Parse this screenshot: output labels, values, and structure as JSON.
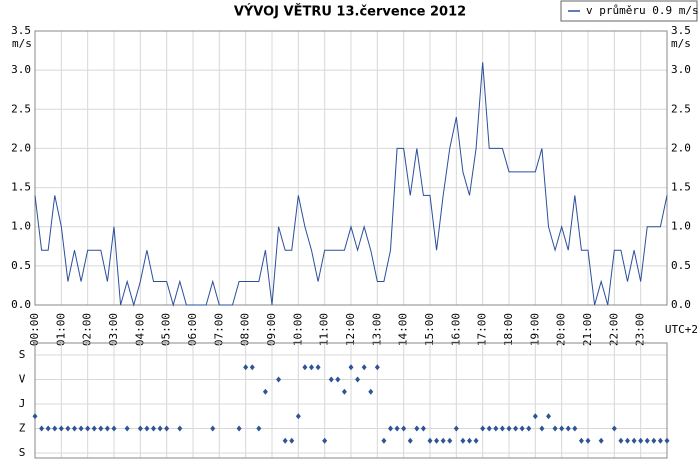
{
  "chart_data": [
    {
      "type": "line",
      "title": "VÝVOJ VĚTRU  13.července 2012",
      "y_unit": "m/s",
      "x_label": "UTC+2",
      "xlim": [
        0,
        24
      ],
      "xticks": [
        {
          "value": 0,
          "label": "00:00"
        },
        {
          "value": 1,
          "label": "01:00"
        },
        {
          "value": 2,
          "label": "02:00"
        },
        {
          "value": 3,
          "label": "03:00"
        },
        {
          "value": 4,
          "label": "04:00"
        },
        {
          "value": 5,
          "label": "05:00"
        },
        {
          "value": 6,
          "label": "06:00"
        },
        {
          "value": 7,
          "label": "07:00"
        },
        {
          "value": 8,
          "label": "08:00"
        },
        {
          "value": 9,
          "label": "09:00"
        },
        {
          "value": 10,
          "label": "10:00"
        },
        {
          "value": 11,
          "label": "11:00"
        },
        {
          "value": 12,
          "label": "12:00"
        },
        {
          "value": 13,
          "label": "13:00"
        },
        {
          "value": 14,
          "label": "14:00"
        },
        {
          "value": 15,
          "label": "15:00"
        },
        {
          "value": 16,
          "label": "16:00"
        },
        {
          "value": 17,
          "label": "17:00"
        },
        {
          "value": 18,
          "label": "18:00"
        },
        {
          "value": 19,
          "label": "19:00"
        },
        {
          "value": 20,
          "label": "20:00"
        },
        {
          "value": 21,
          "label": "21:00"
        },
        {
          "value": 22,
          "label": "22:00"
        },
        {
          "value": 23,
          "label": "23:00"
        }
      ],
      "ylim": [
        0,
        3.5
      ],
      "yticks": [
        {
          "value": 0,
          "label": "0.0"
        },
        {
          "value": 0.5,
          "label": "0.5"
        },
        {
          "value": 1,
          "label": "1.0"
        },
        {
          "value": 1.5,
          "label": "1.5"
        },
        {
          "value": 2,
          "label": "2.0"
        },
        {
          "value": 2.5,
          "label": "2.5"
        },
        {
          "value": 3,
          "label": "3.0"
        },
        {
          "value": 3.5,
          "label": "3.5"
        }
      ],
      "grid": true,
      "legend": "top-right",
      "x": [
        0,
        0.25,
        0.5,
        0.75,
        1,
        1.25,
        1.5,
        1.75,
        2,
        2.25,
        2.5,
        2.75,
        3,
        3.25,
        3.5,
        3.75,
        4,
        4.25,
        4.5,
        4.75,
        5,
        5.25,
        5.5,
        5.75,
        6,
        6.25,
        6.5,
        6.75,
        7,
        7.25,
        7.5,
        7.75,
        8,
        8.25,
        8.5,
        8.75,
        9,
        9.25,
        9.5,
        9.75,
        10,
        10.25,
        10.5,
        10.75,
        11,
        11.25,
        11.5,
        11.75,
        12,
        12.25,
        12.5,
        12.75,
        13,
        13.25,
        13.5,
        13.75,
        14,
        14.25,
        14.5,
        14.75,
        15,
        15.25,
        15.5,
        15.75,
        16,
        16.25,
        16.5,
        16.75,
        17,
        17.25,
        17.5,
        17.75,
        18,
        18.25,
        18.5,
        18.75,
        19,
        19.25,
        19.5,
        19.75,
        20,
        20.25,
        20.5,
        20.75,
        21,
        21.25,
        21.5,
        21.75,
        22,
        22.25,
        22.5,
        22.75,
        23,
        23.25,
        23.5,
        23.75,
        24
      ],
      "series": [
        {
          "name": "v průměru 0.9 m/s",
          "color": "#2b4f9c",
          "values": [
            1.4,
            0.7,
            0.7,
            1.4,
            1.0,
            0.3,
            0.7,
            0.3,
            0.7,
            0.7,
            0.7,
            0.3,
            1.0,
            0,
            0.3,
            0,
            0.3,
            0.7,
            0.3,
            0.3,
            0.3,
            0,
            0.3,
            0,
            0,
            0,
            0,
            0.3,
            0,
            0,
            0,
            0.3,
            0.3,
            0.3,
            0.3,
            0.7,
            0,
            1.0,
            0.7,
            0.7,
            1.4,
            1.0,
            0.7,
            0.3,
            0.7,
            0.7,
            0.7,
            0.7,
            1.0,
            0.7,
            1.0,
            0.7,
            0.3,
            0.3,
            0.7,
            2.0,
            2.0,
            1.4,
            2.0,
            1.4,
            1.4,
            0.7,
            1.4,
            2.0,
            2.4,
            1.7,
            1.4,
            2.0,
            3.1,
            2.0,
            2.0,
            2.0,
            1.7,
            1.7,
            1.7,
            1.7,
            1.7,
            2.0,
            1.0,
            0.7,
            1.0,
            0.7,
            1.4,
            0.7,
            0.7,
            0,
            0.3,
            0,
            0.7,
            0.7,
            0.3,
            0.7,
            0.3,
            1.0,
            1.0,
            1.0,
            1.4
          ]
        }
      ]
    },
    {
      "type": "scatter",
      "xlim": [
        0,
        24
      ],
      "ylim": [
        0,
        4
      ],
      "yticks": [
        {
          "value": 0,
          "label": "S"
        },
        {
          "value": 1,
          "label": "Z"
        },
        {
          "value": 2,
          "label": "J"
        },
        {
          "value": 3,
          "label": "V"
        },
        {
          "value": 4,
          "label": "S"
        }
      ],
      "color": "#2f5597",
      "x": [
        0,
        0.25,
        0.5,
        0.75,
        1,
        1.25,
        1.5,
        1.75,
        2,
        2.25,
        2.5,
        2.75,
        3,
        3.5,
        4,
        4.25,
        4.5,
        4.75,
        5,
        5.5,
        6.75,
        7.75,
        8,
        8.25,
        8.5,
        8.75,
        9.25,
        9.5,
        9.75,
        10,
        10.25,
        10.5,
        10.75,
        11,
        11.25,
        11.5,
        11.75,
        12,
        12.25,
        12.5,
        12.75,
        13,
        13.25,
        13.5,
        13.75,
        14,
        14.25,
        14.5,
        14.75,
        15,
        15.25,
        15.5,
        15.75,
        16,
        16.25,
        16.5,
        16.75,
        17,
        17.25,
        17.5,
        17.75,
        18,
        18.25,
        18.5,
        18.75,
        19,
        19.25,
        19.5,
        19.75,
        20,
        20.25,
        20.5,
        20.75,
        21,
        21.5,
        22,
        22.25,
        22.5,
        22.75,
        23,
        23.25,
        23.5,
        23.75,
        24
      ],
      "values": [
        1.5,
        1,
        1,
        1,
        1,
        1,
        1,
        1,
        1,
        1,
        1,
        1,
        1,
        1,
        1,
        1,
        1,
        1,
        1,
        1,
        1,
        1,
        3.5,
        3.5,
        1,
        2.5,
        3,
        0.5,
        0.5,
        1.5,
        3.5,
        3.5,
        3.5,
        0.5,
        3,
        3,
        2.5,
        3.5,
        3,
        3.5,
        2.5,
        3.5,
        0.5,
        1,
        1,
        1,
        0.5,
        1,
        1,
        0.5,
        0.5,
        0.5,
        0.5,
        1,
        0.5,
        0.5,
        0.5,
        1,
        1,
        1,
        1,
        1,
        1,
        1,
        1,
        1.5,
        1,
        1.5,
        1,
        1,
        1,
        1,
        0.5,
        0.5,
        0.5,
        1,
        0.5,
        0.5,
        0.5,
        0.5,
        0.5,
        0.5,
        0.5,
        0.5
      ]
    }
  ]
}
